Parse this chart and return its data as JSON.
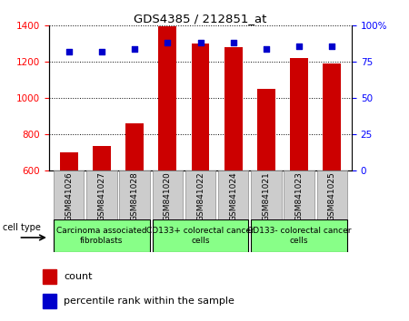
{
  "title": "GDS4385 / 212851_at",
  "samples": [
    "GSM841026",
    "GSM841027",
    "GSM841028",
    "GSM841020",
    "GSM841022",
    "GSM841024",
    "GSM841021",
    "GSM841023",
    "GSM841025"
  ],
  "counts": [
    700,
    735,
    858,
    1395,
    1300,
    1280,
    1050,
    1220,
    1193
  ],
  "percentile_ranks": [
    82,
    82,
    84,
    88,
    88,
    88,
    84,
    86,
    86
  ],
  "ylim_left": [
    600,
    1400
  ],
  "ylim_right": [
    0,
    100
  ],
  "yticks_left": [
    600,
    800,
    1000,
    1200,
    1400
  ],
  "yticks_right": [
    0,
    25,
    50,
    75,
    100
  ],
  "bar_color": "#cc0000",
  "dot_color": "#0000cc",
  "tick_label_bg": "#cccccc",
  "group_color": "#88ff88",
  "cell_type_label": "cell type",
  "legend_count": "count",
  "legend_percentile": "percentile rank within the sample",
  "group_defs": [
    [
      0,
      2,
      "Carcinoma associated\nfibroblasts"
    ],
    [
      3,
      5,
      "CD133+ colorectal cancer\ncells"
    ],
    [
      6,
      8,
      "CD133- colorectal cancer\ncells"
    ]
  ]
}
